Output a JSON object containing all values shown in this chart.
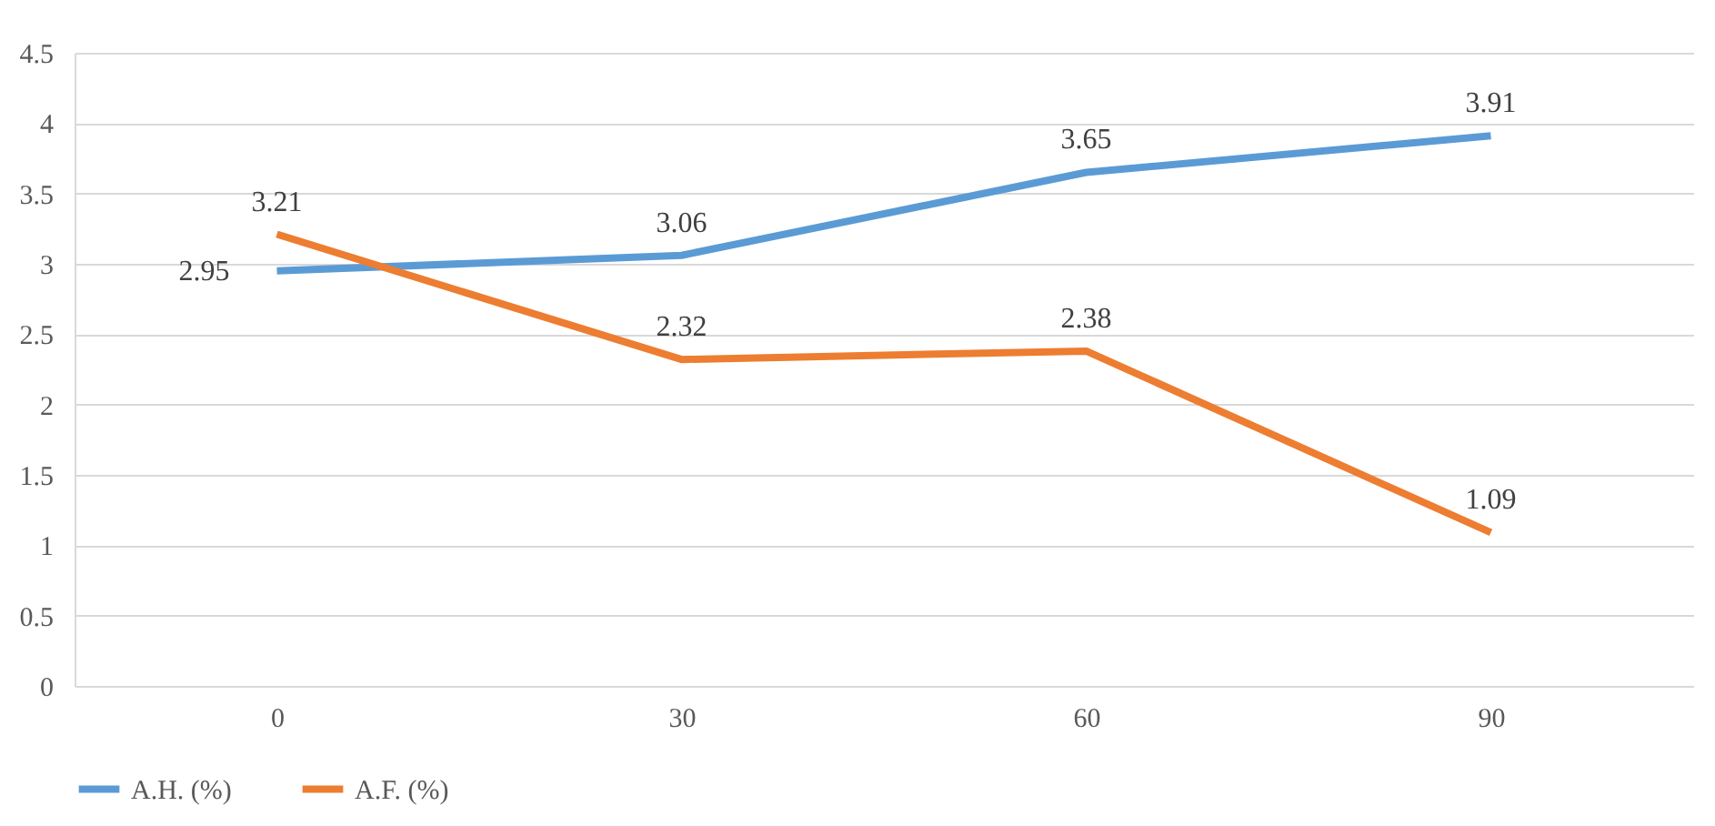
{
  "chart_data": {
    "type": "line",
    "categories": [
      "0",
      "30",
      "60",
      "90"
    ],
    "series": [
      {
        "name": "A.H. (%)",
        "color": "#5b9bd5",
        "values": [
          2.95,
          3.06,
          3.65,
          3.91
        ]
      },
      {
        "name": "A.F. (%)",
        "color": "#ed7d31",
        "values": [
          3.21,
          2.32,
          2.38,
          1.09
        ]
      }
    ],
    "ylim": [
      0,
      4.5
    ],
    "yticks": [
      0,
      0.5,
      1,
      1.5,
      2,
      2.5,
      3,
      3.5,
      4,
      4.5
    ],
    "grid": "y",
    "legend": "bottom",
    "data_labels": true,
    "marker": "none",
    "line_style": "solid"
  }
}
